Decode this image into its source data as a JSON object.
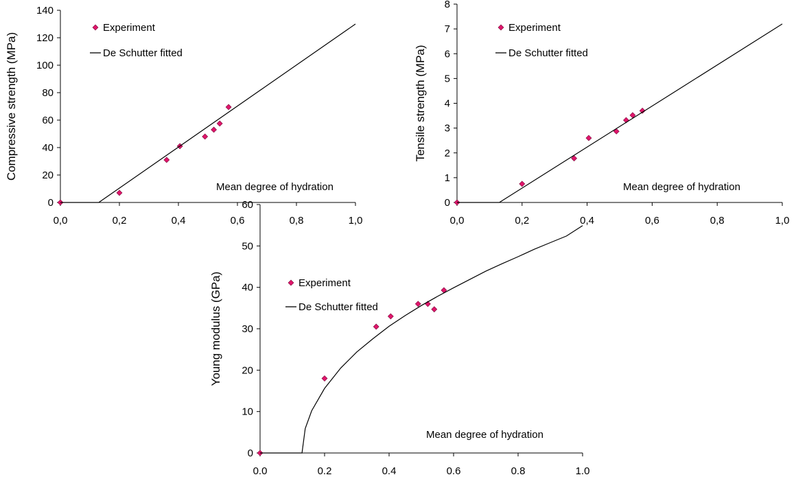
{
  "chart_data": [
    {
      "type": "scatter",
      "title": "",
      "xlabel": "",
      "ylabel": "Compressive strength (MPa)",
      "annotation": "Mean degree of hydration",
      "xlim": [
        0,
        1.0
      ],
      "ylim": [
        0,
        140
      ],
      "xticks": [
        "0,0",
        "0,2",
        "0,4",
        "0,6",
        "0,8",
        "1,0"
      ],
      "yticks": [
        "0",
        "20",
        "40",
        "60",
        "80",
        "100",
        "120",
        "140"
      ],
      "legend_placement": "top-left",
      "series": [
        {
          "name": "Experiment",
          "kind": "markers",
          "color": "#e0156b",
          "x": [
            0.0,
            0.2,
            0.36,
            0.405,
            0.49,
            0.52,
            0.54,
            0.57
          ],
          "y": [
            0,
            7,
            31,
            41,
            48,
            53,
            57.5,
            69.5
          ]
        },
        {
          "name": "De Schutter fitted",
          "kind": "line",
          "color": "#000000",
          "x": [
            0.0,
            0.13,
            1.0
          ],
          "y": [
            0,
            0,
            130
          ]
        }
      ]
    },
    {
      "type": "scatter",
      "title": "",
      "xlabel": "",
      "ylabel": "Tensile strength (MPa)",
      "annotation": "Mean degree of hydration",
      "xlim": [
        0,
        1.0
      ],
      "ylim": [
        0,
        8
      ],
      "xticks": [
        "0,0",
        "0,2",
        "0,4",
        "0,6",
        "0,8",
        "1,0"
      ],
      "yticks": [
        "0",
        "1",
        "2",
        "3",
        "4",
        "5",
        "6",
        "7",
        "8"
      ],
      "legend_placement": "top-left",
      "series": [
        {
          "name": "Experiment",
          "kind": "markers",
          "color": "#e0156b",
          "x": [
            0.0,
            0.2,
            0.36,
            0.405,
            0.49,
            0.52,
            0.54,
            0.57
          ],
          "y": [
            0,
            0.75,
            1.78,
            2.6,
            2.87,
            3.32,
            3.52,
            3.7
          ]
        },
        {
          "name": "De Schutter fitted",
          "kind": "line",
          "color": "#000000",
          "x": [
            0.0,
            0.13,
            1.0
          ],
          "y": [
            0,
            0,
            7.2
          ]
        }
      ]
    },
    {
      "type": "scatter",
      "title": "",
      "xlabel": "",
      "ylabel": "Young modulus (GPa)",
      "annotation": "Mean degree of hydration",
      "xlim": [
        0,
        1.0
      ],
      "ylim": [
        0,
        60
      ],
      "xticks": [
        "0.0",
        "0.2",
        "0.4",
        "0.6",
        "0.8",
        "1.0"
      ],
      "yticks": [
        "0",
        "10",
        "20",
        "30",
        "40",
        "50",
        "60"
      ],
      "legend_placement": "top-left",
      "series": [
        {
          "name": "Experiment",
          "kind": "markers",
          "color": "#e0156b",
          "x": [
            0.0,
            0.2,
            0.36,
            0.405,
            0.49,
            0.52,
            0.54,
            0.57
          ],
          "y": [
            0,
            18,
            30.5,
            33,
            36,
            36,
            34.7,
            39.3
          ]
        },
        {
          "name": "De Schutter fitted",
          "kind": "line",
          "color": "#000000",
          "x": [
            0.0,
            0.13,
            0.14,
            0.16,
            0.2,
            0.25,
            0.3,
            0.35,
            0.4,
            0.45,
            0.5,
            0.55,
            0.6,
            0.65,
            0.7,
            0.75,
            0.8,
            0.85,
            0.9,
            0.95,
            1.0
          ],
          "y": [
            0,
            0,
            5.9,
            10.2,
            15.6,
            20.5,
            24.4,
            27.6,
            30.6,
            33.2,
            35.6,
            37.8,
            39.9,
            41.9,
            43.9,
            45.7,
            47.4,
            49.2,
            50.8,
            52.4,
            54.9
          ]
        }
      ]
    }
  ]
}
